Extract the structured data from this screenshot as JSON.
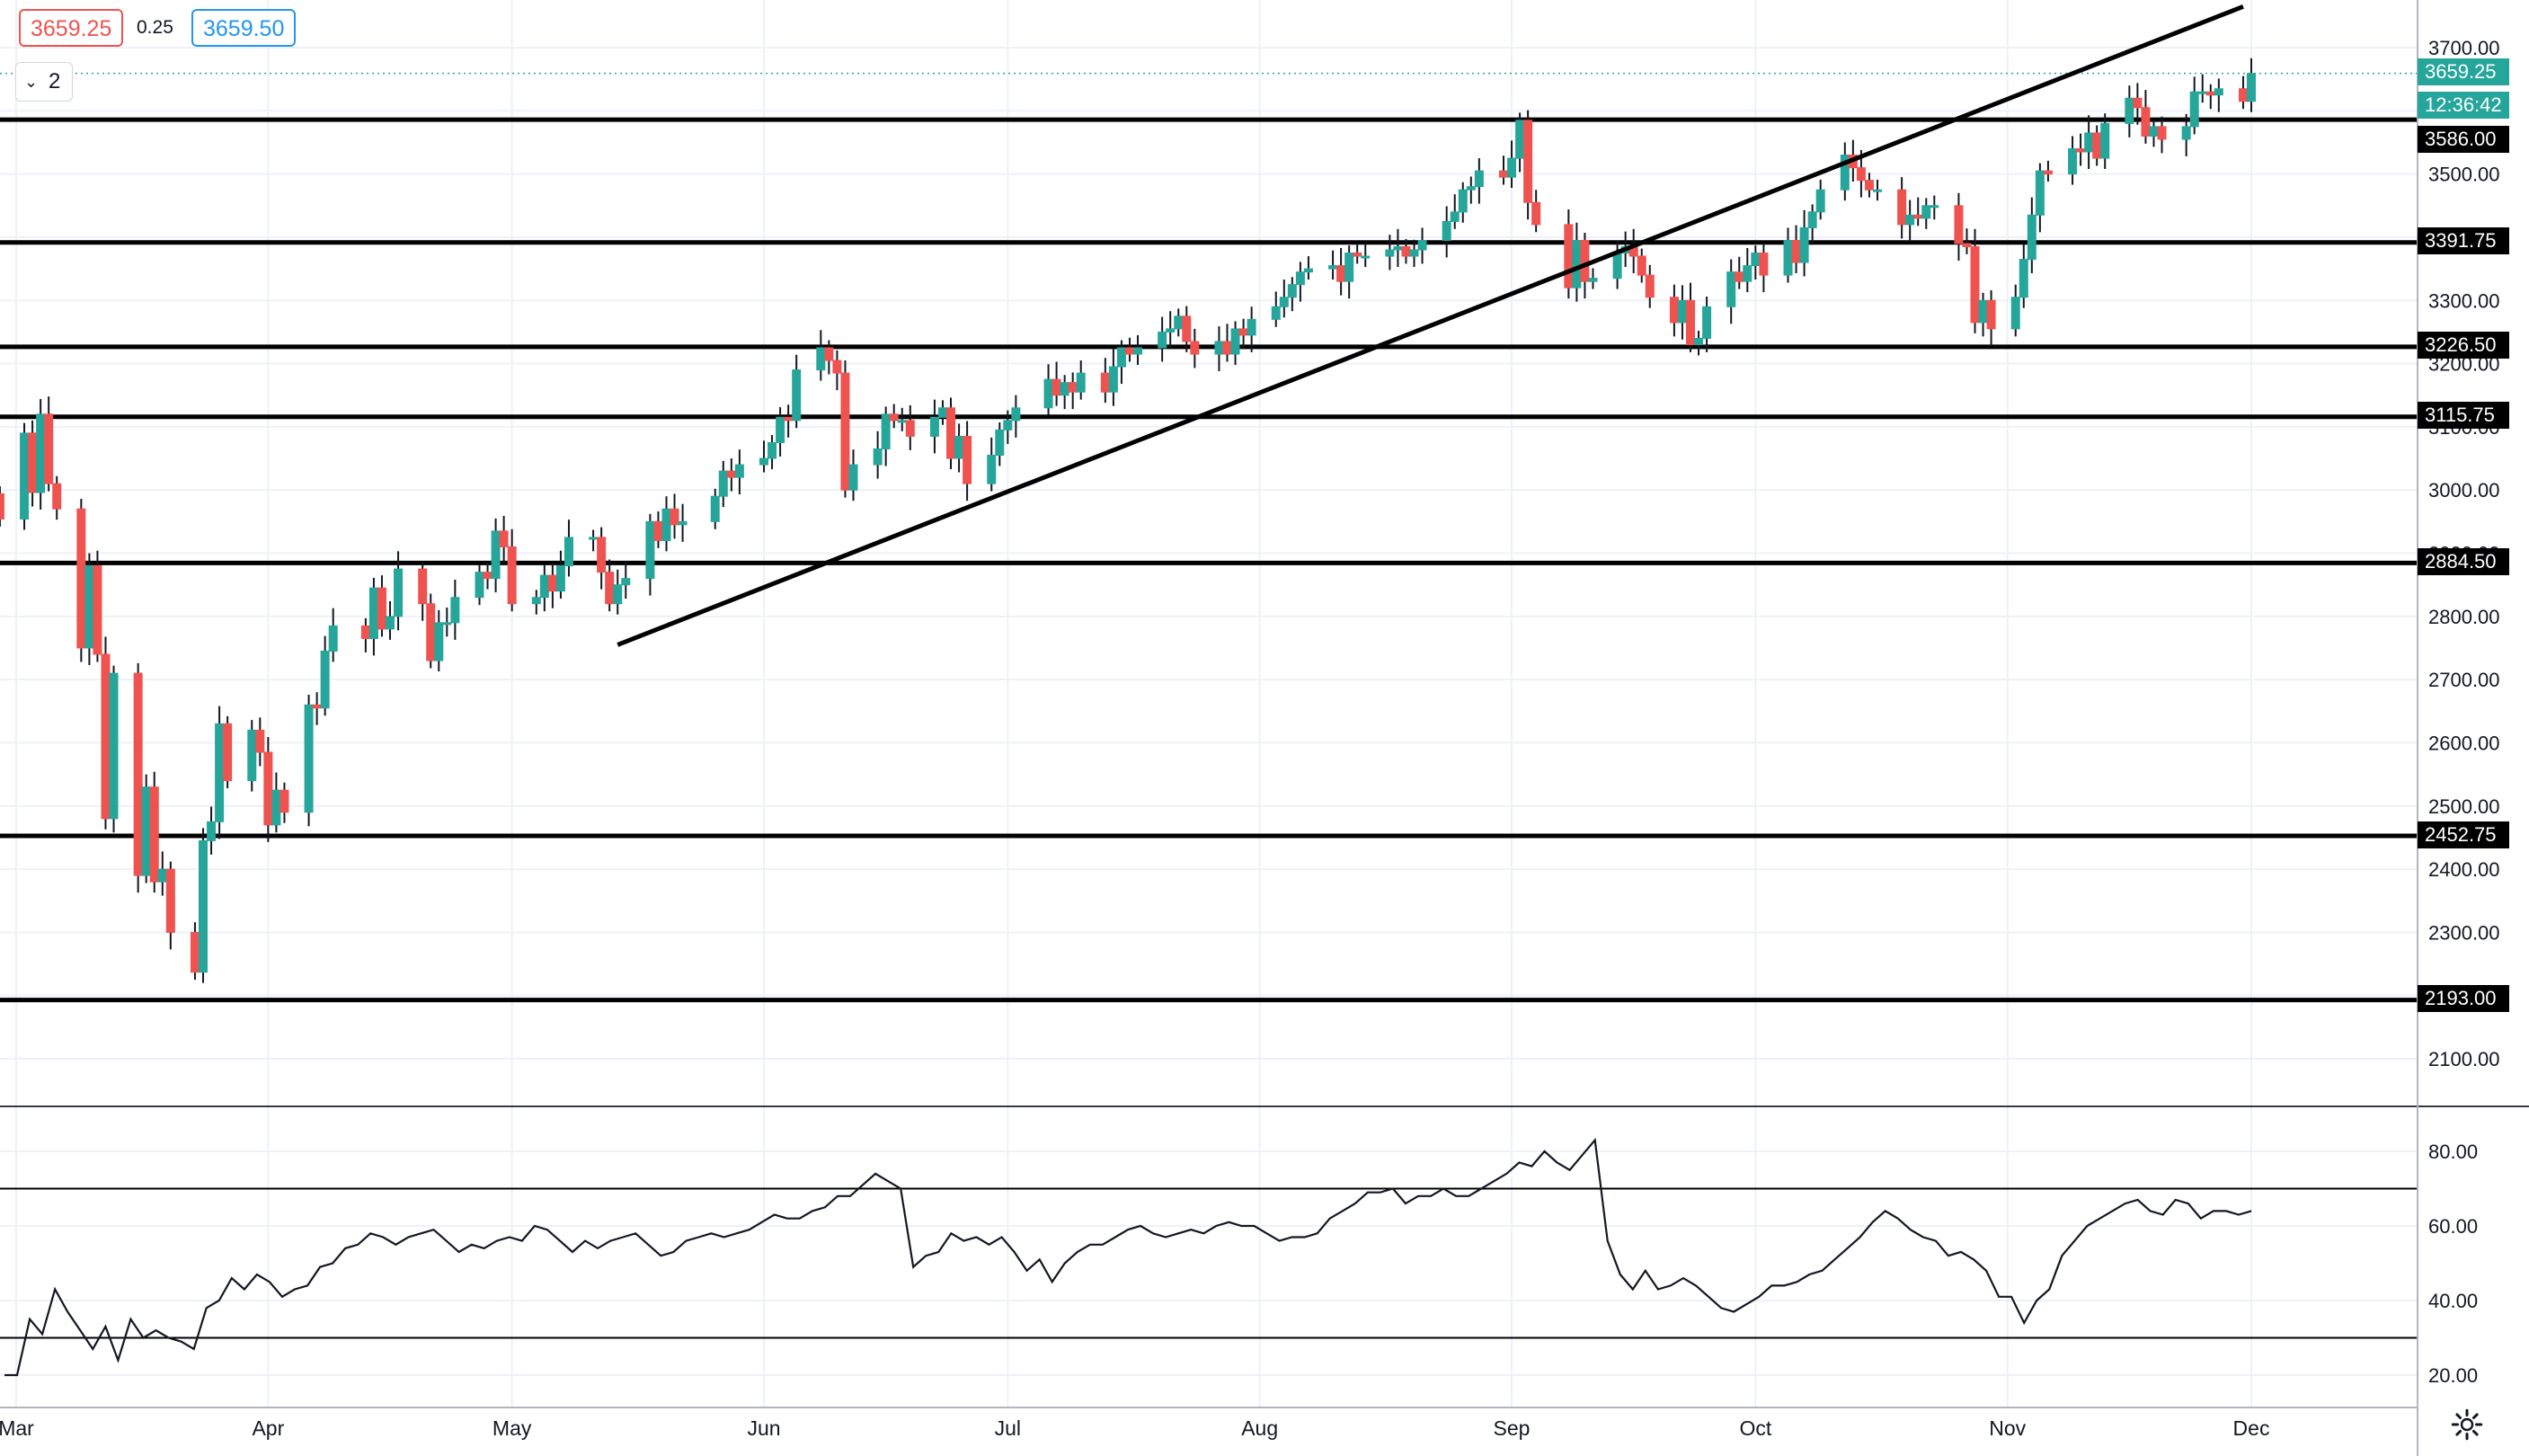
{
  "header": {
    "bid": "3659.25",
    "spread": "0.25",
    "ask": "3659.50",
    "pane_toggle": "2"
  },
  "price_tags": {
    "last": "3659.25",
    "countdown": "12:36:42",
    "horizontal_levels": [
      "3586.00",
      "3391.75",
      "3226.50",
      "3115.75",
      "2884.50",
      "2452.75",
      "2193.00"
    ]
  },
  "colors": {
    "up": "#26a69a",
    "down": "#ef5350",
    "grid": "#eef1f7",
    "line": "#000000",
    "bid": "#ef5350",
    "ask": "#2196f3"
  },
  "icons": {
    "settings": "gear-icon",
    "toggle": "chevron-down-icon"
  },
  "chart_data": [
    {
      "type": "candlestick",
      "y_axis_ticks": [
        2100,
        2200,
        2300,
        2400,
        2500,
        2600,
        2700,
        2800,
        2900,
        3000,
        3100,
        3200,
        3300,
        3400,
        3500,
        3600,
        3700
      ],
      "y_axis_labels": [
        "2100.00",
        "2200.00",
        "2300.00",
        "2400.00",
        "2500.00",
        "2600.00",
        "2700.00",
        "2800.00",
        "2900.00",
        "3000.00",
        "3100.00",
        "3200.00",
        "3300.00",
        "3400.00",
        "3500.00",
        "3600.00",
        "3700.00"
      ],
      "ylim": [
        2005,
        3765
      ],
      "x_axis_labels": [
        "Mar",
        "Apr",
        "May",
        "Jun",
        "Jul",
        "Aug",
        "Sep",
        "Oct",
        "Nov",
        "Dec"
      ],
      "x_axis_dates": [
        "2020-03-01",
        "2020-04-01",
        "2020-05-01",
        "2020-06-01",
        "2020-07-01",
        "2020-08-01",
        "2020-09-01",
        "2020-10-01",
        "2020-11-01",
        "2020-12-01"
      ],
      "horizontal_levels": [
        3586.0,
        3391.75,
        3226.5,
        3115.75,
        2884.5,
        2452.75,
        2193.0
      ],
      "trendline": [
        {
          "date": "2020-05-14",
          "price": 2755
        },
        {
          "date": "2020-11-30",
          "price": 3765
        }
      ],
      "closes": [
        [
          "2020-02-28",
          2954
        ],
        [
          "2020-03-02",
          3090
        ],
        [
          "2020-03-03",
          2996
        ],
        [
          "2020-03-04",
          3120
        ],
        [
          "2020-03-05",
          3010
        ],
        [
          "2020-03-06",
          2970
        ],
        [
          "2020-03-09",
          2750
        ],
        [
          "2020-03-10",
          2880
        ],
        [
          "2020-03-11",
          2740
        ],
        [
          "2020-03-12",
          2480
        ],
        [
          "2020-03-13",
          2710
        ],
        [
          "2020-03-16",
          2390
        ],
        [
          "2020-03-17",
          2530
        ],
        [
          "2020-03-18",
          2380
        ],
        [
          "2020-03-19",
          2400
        ],
        [
          "2020-03-20",
          2300
        ],
        [
          "2020-03-23",
          2237
        ],
        [
          "2020-03-24",
          2445
        ],
        [
          "2020-03-25",
          2475
        ],
        [
          "2020-03-26",
          2630
        ],
        [
          "2020-03-27",
          2540
        ],
        [
          "2020-03-30",
          2620
        ],
        [
          "2020-03-31",
          2585
        ],
        [
          "2020-04-01",
          2470
        ],
        [
          "2020-04-02",
          2525
        ],
        [
          "2020-04-03",
          2490
        ],
        [
          "2020-04-06",
          2660
        ],
        [
          "2020-04-07",
          2655
        ],
        [
          "2020-04-08",
          2745
        ],
        [
          "2020-04-09",
          2785
        ],
        [
          "2020-04-13",
          2765
        ],
        [
          "2020-04-14",
          2845
        ],
        [
          "2020-04-15",
          2780
        ],
        [
          "2020-04-16",
          2800
        ],
        [
          "2020-04-17",
          2875
        ],
        [
          "2020-04-20",
          2820
        ],
        [
          "2020-04-21",
          2730
        ],
        [
          "2020-04-22",
          2790
        ],
        [
          "2020-04-23",
          2790
        ],
        [
          "2020-04-24",
          2830
        ],
        [
          "2020-04-27",
          2870
        ],
        [
          "2020-04-28",
          2860
        ],
        [
          "2020-04-29",
          2935
        ],
        [
          "2020-04-30",
          2910
        ],
        [
          "2020-05-01",
          2820
        ],
        [
          "2020-05-04",
          2830
        ],
        [
          "2020-05-05",
          2865
        ],
        [
          "2020-05-06",
          2840
        ],
        [
          "2020-05-07",
          2880
        ],
        [
          "2020-05-08",
          2925
        ],
        [
          "2020-05-11",
          2925
        ],
        [
          "2020-05-12",
          2870
        ],
        [
          "2020-05-13",
          2820
        ],
        [
          "2020-05-14",
          2850
        ],
        [
          "2020-05-15",
          2860
        ],
        [
          "2020-05-18",
          2950
        ],
        [
          "2020-05-19",
          2920
        ],
        [
          "2020-05-20",
          2970
        ],
        [
          "2020-05-21",
          2945
        ],
        [
          "2020-05-22",
          2950
        ],
        [
          "2020-05-26",
          2990
        ],
        [
          "2020-05-27",
          3030
        ],
        [
          "2020-05-28",
          3020
        ],
        [
          "2020-05-29",
          3040
        ],
        [
          "2020-06-01",
          3050
        ],
        [
          "2020-06-02",
          3075
        ],
        [
          "2020-06-03",
          3115
        ],
        [
          "2020-06-04",
          3110
        ],
        [
          "2020-06-05",
          3190
        ],
        [
          "2020-06-08",
          3225
        ],
        [
          "2020-06-09",
          3205
        ],
        [
          "2020-06-10",
          3185
        ],
        [
          "2020-06-11",
          3000
        ],
        [
          "2020-06-12",
          3040
        ],
        [
          "2020-06-15",
          3065
        ],
        [
          "2020-06-16",
          3120
        ],
        [
          "2020-06-17",
          3110
        ],
        [
          "2020-06-18",
          3110
        ],
        [
          "2020-06-19",
          3085
        ],
        [
          "2020-06-22",
          3115
        ],
        [
          "2020-06-23",
          3130
        ],
        [
          "2020-06-24",
          3050
        ],
        [
          "2020-06-25",
          3085
        ],
        [
          "2020-06-26",
          3010
        ],
        [
          "2020-06-29",
          3055
        ],
        [
          "2020-06-30",
          3095
        ],
        [
          "2020-07-01",
          3110
        ],
        [
          "2020-07-02",
          3130
        ],
        [
          "2020-07-06",
          3175
        ],
        [
          "2020-07-07",
          3150
        ],
        [
          "2020-07-08",
          3170
        ],
        [
          "2020-07-09",
          3155
        ],
        [
          "2020-07-10",
          3185
        ],
        [
          "2020-07-13",
          3155
        ],
        [
          "2020-07-14",
          3195
        ],
        [
          "2020-07-15",
          3225
        ],
        [
          "2020-07-16",
          3215
        ],
        [
          "2020-07-17",
          3225
        ],
        [
          "2020-07-20",
          3250
        ],
        [
          "2020-07-21",
          3255
        ],
        [
          "2020-07-22",
          3275
        ],
        [
          "2020-07-23",
          3235
        ],
        [
          "2020-07-24",
          3215
        ],
        [
          "2020-07-27",
          3235
        ],
        [
          "2020-07-28",
          3215
        ],
        [
          "2020-07-29",
          3255
        ],
        [
          "2020-07-30",
          3245
        ],
        [
          "2020-07-31",
          3270
        ],
        [
          "2020-08-03",
          3290
        ],
        [
          "2020-08-04",
          3305
        ],
        [
          "2020-08-05",
          3325
        ],
        [
          "2020-08-06",
          3345
        ],
        [
          "2020-08-07",
          3350
        ],
        [
          "2020-08-10",
          3355
        ],
        [
          "2020-08-11",
          3330
        ],
        [
          "2020-08-12",
          3375
        ],
        [
          "2020-08-13",
          3370
        ],
        [
          "2020-08-14",
          3370
        ],
        [
          "2020-08-17",
          3380
        ],
        [
          "2020-08-18",
          3385
        ],
        [
          "2020-08-19",
          3370
        ],
        [
          "2020-08-20",
          3380
        ],
        [
          "2020-08-21",
          3395
        ],
        [
          "2020-08-24",
          3425
        ],
        [
          "2020-08-25",
          3440
        ],
        [
          "2020-08-26",
          3475
        ],
        [
          "2020-08-27",
          3480
        ],
        [
          "2020-08-28",
          3505
        ],
        [
          "2020-08-31",
          3495
        ],
        [
          "2020-09-01",
          3525
        ],
        [
          "2020-09-02",
          3585
        ],
        [
          "2020-09-03",
          3455
        ],
        [
          "2020-09-04",
          3420
        ],
        [
          "2020-09-08",
          3320
        ],
        [
          "2020-09-09",
          3395
        ],
        [
          "2020-09-10",
          3330
        ],
        [
          "2020-09-11",
          3335
        ],
        [
          "2020-09-14",
          3375
        ],
        [
          "2020-09-15",
          3385
        ],
        [
          "2020-09-16",
          3370
        ],
        [
          "2020-09-17",
          3340
        ],
        [
          "2020-09-18",
          3305
        ],
        [
          "2020-09-21",
          3265
        ],
        [
          "2020-09-22",
          3300
        ],
        [
          "2020-09-23",
          3230
        ],
        [
          "2020-09-24",
          3240
        ],
        [
          "2020-09-25",
          3290
        ],
        [
          "2020-09-28",
          3345
        ],
        [
          "2020-09-29",
          3330
        ],
        [
          "2020-09-30",
          3355
        ],
        [
          "2020-10-01",
          3375
        ],
        [
          "2020-10-02",
          3340
        ],
        [
          "2020-10-05",
          3395
        ],
        [
          "2020-10-06",
          3360
        ],
        [
          "2020-10-07",
          3415
        ],
        [
          "2020-10-08",
          3440
        ],
        [
          "2020-10-09",
          3475
        ],
        [
          "2020-10-12",
          3530
        ],
        [
          "2020-10-13",
          3510
        ],
        [
          "2020-10-14",
          3490
        ],
        [
          "2020-10-15",
          3475
        ],
        [
          "2020-10-16",
          3475
        ],
        [
          "2020-10-19",
          3420
        ],
        [
          "2020-10-20",
          3435
        ],
        [
          "2020-10-21",
          3430
        ],
        [
          "2020-10-22",
          3450
        ],
        [
          "2020-10-23",
          3450
        ],
        [
          "2020-10-26",
          3390
        ],
        [
          "2020-10-27",
          3385
        ],
        [
          "2020-10-28",
          3265
        ],
        [
          "2020-10-29",
          3300
        ],
        [
          "2020-10-30",
          3255
        ],
        [
          "2020-11-02",
          3305
        ],
        [
          "2020-11-03",
          3365
        ],
        [
          "2020-11-04",
          3435
        ],
        [
          "2020-11-05",
          3505
        ],
        [
          "2020-11-06",
          3500
        ],
        [
          "2020-11-09",
          3540
        ],
        [
          "2020-11-10",
          3535
        ],
        [
          "2020-11-11",
          3565
        ],
        [
          "2020-11-12",
          3525
        ],
        [
          "2020-11-13",
          3580
        ],
        [
          "2020-11-16",
          3620
        ],
        [
          "2020-11-17",
          3605
        ],
        [
          "2020-11-18",
          3560
        ],
        [
          "2020-11-19",
          3575
        ],
        [
          "2020-11-20",
          3555
        ],
        [
          "2020-11-23",
          3575
        ],
        [
          "2020-11-24",
          3630
        ],
        [
          "2020-11-25",
          3630
        ],
        [
          "2020-11-26",
          3625
        ],
        [
          "2020-11-27",
          3635
        ],
        [
          "2020-11-30",
          3615
        ],
        [
          "2020-12-01",
          3659.25
        ]
      ]
    },
    {
      "type": "line",
      "indicator": "oscillator",
      "y_axis_ticks": [
        20,
        40,
        60,
        80
      ],
      "y_axis_labels": [
        "20.00",
        "40.00",
        "60.00",
        "80.00"
      ],
      "ylim": [
        15,
        90
      ],
      "reference_levels": [
        70,
        30
      ],
      "values": [
        20,
        20,
        35,
        31,
        43,
        37,
        32,
        27,
        33,
        24,
        35,
        30,
        32,
        30,
        29,
        27,
        38,
        40,
        46,
        43,
        47,
        45,
        41,
        43,
        44,
        49,
        50,
        54,
        55,
        58,
        57,
        55,
        57,
        58,
        59,
        56,
        53,
        55,
        54,
        56,
        57,
        56,
        60,
        59,
        56,
        53,
        56,
        54,
        56,
        57,
        58,
        55,
        52,
        53,
        56,
        57,
        58,
        57,
        58,
        59,
        61,
        63,
        62,
        62,
        64,
        65,
        68,
        68,
        71,
        74,
        72,
        70,
        49,
        52,
        53,
        58,
        56,
        57,
        55,
        57,
        53,
        48,
        51,
        45,
        50,
        53,
        55,
        55,
        57,
        59,
        60,
        58,
        57,
        58,
        59,
        58,
        60,
        61,
        60,
        60,
        58,
        56,
        57,
        57,
        58,
        62,
        64,
        66,
        69,
        69,
        70,
        66,
        68,
        68,
        70,
        68,
        68,
        70,
        72,
        74,
        77,
        76,
        80,
        77,
        75,
        79,
        83,
        56,
        47,
        43,
        48,
        43,
        44,
        46,
        44,
        41,
        38,
        37,
        39,
        41,
        44,
        44,
        45,
        47,
        48,
        51,
        54,
        57,
        61,
        64,
        62,
        59,
        57,
        56,
        52,
        53,
        51,
        48,
        41,
        41,
        34,
        40,
        43,
        52,
        56,
        60,
        62,
        64,
        66,
        67,
        64,
        63,
        67,
        66,
        62,
        64,
        64,
        63,
        64
      ]
    }
  ]
}
